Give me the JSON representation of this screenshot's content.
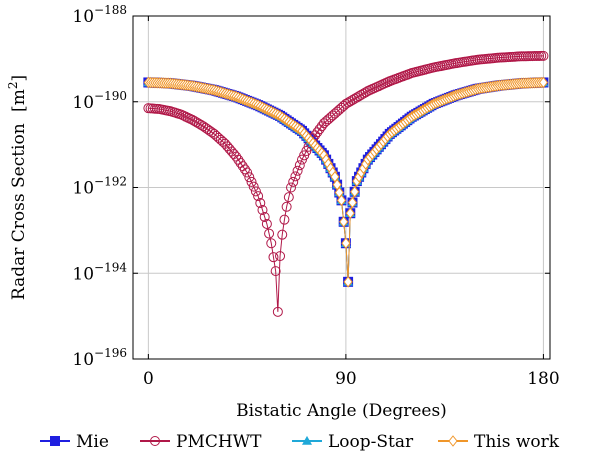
{
  "chart_data": {
    "type": "scatter",
    "xlabel": "Bistatic Angle (Degrees)",
    "ylabel": "Radar Cross Section",
    "ylabel_unit": "[m",
    "ylabel_unit_exp": "2",
    "ylabel_unit_close": "]",
    "xlim": [
      -7,
      183
    ],
    "ylim": [
      -196,
      -188
    ],
    "yscale": "log",
    "grid": true,
    "legend_position": "bottom",
    "x_ticks": [
      {
        "value": 0,
        "label": "0"
      },
      {
        "value": 90,
        "label": "90"
      },
      {
        "value": 180,
        "label": "180"
      }
    ],
    "y_ticks": [
      {
        "value": -188,
        "base": "10",
        "exp": "−188"
      },
      {
        "value": -190,
        "base": "10",
        "exp": "−190"
      },
      {
        "value": -192,
        "base": "10",
        "exp": "−192"
      },
      {
        "value": -194,
        "base": "10",
        "exp": "−194"
      },
      {
        "value": -196,
        "base": "10",
        "exp": "−196"
      }
    ],
    "series": [
      {
        "name": "Mie",
        "color": "#1f1fe0",
        "marker": "square",
        "x": [
          0,
          10,
          20,
          30,
          40,
          50,
          60,
          70,
          80,
          85,
          88,
          89,
          90,
          91,
          92,
          95,
          100,
          110,
          120,
          130,
          140,
          150,
          160,
          170,
          180
        ],
        "y": [
          -189.55,
          -189.57,
          -189.63,
          -189.73,
          -189.88,
          -190.08,
          -190.33,
          -190.68,
          -191.25,
          -191.75,
          -192.3,
          -192.8,
          -193.3,
          -194.2,
          -192.6,
          -191.85,
          -191.35,
          -190.75,
          -190.35,
          -190.05,
          -189.85,
          -189.7,
          -189.62,
          -189.57,
          -189.55
        ]
      },
      {
        "name": "PMCHWT",
        "color": "#b01848",
        "marker": "circle",
        "x": [
          0,
          5,
          10,
          15,
          20,
          25,
          30,
          35,
          40,
          45,
          50,
          54,
          56,
          58,
          59,
          60,
          61,
          62,
          63,
          65,
          70,
          75,
          80,
          90,
          100,
          110,
          120,
          130,
          140,
          150,
          160,
          170,
          180
        ],
        "y": [
          -190.15,
          -190.17,
          -190.22,
          -190.3,
          -190.42,
          -190.57,
          -190.75,
          -190.98,
          -191.28,
          -191.65,
          -192.2,
          -192.85,
          -193.3,
          -193.95,
          -194.9,
          -193.6,
          -193.1,
          -192.75,
          -192.45,
          -192.0,
          -191.35,
          -190.85,
          -190.5,
          -190.05,
          -189.75,
          -189.52,
          -189.33,
          -189.2,
          -189.1,
          -189.02,
          -188.97,
          -188.94,
          -188.93
        ]
      },
      {
        "name": "Loop-Star",
        "color": "#1fa8d8",
        "marker": "triangle",
        "x": [
          0,
          10,
          20,
          30,
          40,
          50,
          60,
          70,
          80,
          85,
          88,
          89,
          90,
          91,
          92,
          95,
          100,
          110,
          120,
          130,
          140,
          150,
          160,
          170,
          180
        ],
        "y": [
          -189.55,
          -189.57,
          -189.63,
          -189.73,
          -189.88,
          -190.08,
          -190.33,
          -190.68,
          -191.25,
          -191.75,
          -192.3,
          -192.8,
          -193.3,
          -194.2,
          -192.6,
          -191.85,
          -191.35,
          -190.75,
          -190.35,
          -190.05,
          -189.85,
          -189.7,
          -189.62,
          -189.57,
          -189.55
        ]
      },
      {
        "name": "This work",
        "color": "#f0962a",
        "marker": "diamond",
        "x": [
          0,
          10,
          20,
          30,
          40,
          50,
          60,
          70,
          80,
          85,
          88,
          89,
          90,
          91,
          92,
          95,
          100,
          110,
          120,
          130,
          140,
          150,
          160,
          170,
          180
        ],
        "y": [
          -189.55,
          -189.57,
          -189.63,
          -189.73,
          -189.88,
          -190.08,
          -190.33,
          -190.68,
          -191.25,
          -191.75,
          -192.3,
          -192.8,
          -193.3,
          -194.2,
          -192.6,
          -191.85,
          -191.35,
          -190.75,
          -190.35,
          -190.05,
          -189.85,
          -189.7,
          -189.62,
          -189.57,
          -189.55
        ]
      }
    ]
  }
}
